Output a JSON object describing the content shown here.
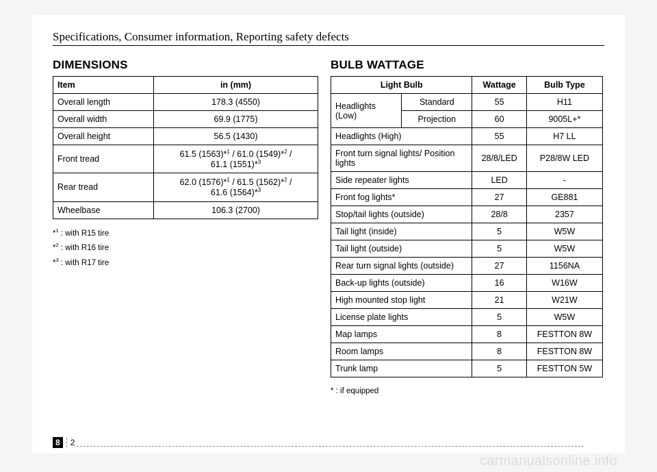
{
  "header": "Specifications, Consumer information, Reporting safety defects",
  "dimensions": {
    "title": "DIMENSIONS",
    "headers": {
      "c1": "Item",
      "c2": "in (mm)"
    },
    "rows": [
      {
        "item": "Overall length",
        "value": "178.3 (4550)"
      },
      {
        "item": "Overall width",
        "value": "69.9 (1775)"
      },
      {
        "item": "Overall height",
        "value": "56.5 (1430)"
      },
      {
        "item": "Front tread",
        "value_html": "61.5 (1563)*¹ / 61.0 (1549)*² / 61.1 (1551)*³"
      },
      {
        "item": "Rear tread",
        "value_html": "62.0 (1576)*¹ / 61.5 (1562)*² / 61.6 (1564)*³"
      },
      {
        "item": "Wheelbase",
        "value": "106.3 (2700)"
      }
    ],
    "footnotes": [
      {
        "mark": "1",
        "text": " : with R15 tire"
      },
      {
        "mark": "2",
        "text": " : with R16 tire"
      },
      {
        "mark": "3",
        "text": " : with R17 tire"
      }
    ]
  },
  "bulb": {
    "title": "BULB WATTAGE",
    "headers": {
      "c1": "Light Bulb",
      "c2": "Wattage",
      "c3": "Bulb Type"
    },
    "headlights_low_label": "Headlights (Low)",
    "headlights_low": [
      {
        "sub": "Standard",
        "wattage": "55",
        "type": "H11"
      },
      {
        "sub": "Projection",
        "wattage": "60",
        "type": "9005L+*"
      }
    ],
    "rows": [
      {
        "name": "Headlights (High)",
        "wattage": "55",
        "type": "H7 LL"
      },
      {
        "name": "Front turn signal lights/ Position lights",
        "wattage": "28/8/LED",
        "type": "P28/8W LED"
      },
      {
        "name": "Side repeater lights",
        "wattage": "LED",
        "type": "-"
      },
      {
        "name": "Front fog lights*",
        "wattage": "27",
        "type": "GE881"
      },
      {
        "name": "Stop/tail lights (outside)",
        "wattage": "28/8",
        "type": "2357"
      },
      {
        "name": "Tail light (inside)",
        "wattage": "5",
        "type": "W5W"
      },
      {
        "name": "Tail light (outside)",
        "wattage": "5",
        "type": "W5W"
      },
      {
        "name": "Rear turn signal lights (outside)",
        "wattage": "27",
        "type": "1156NA"
      },
      {
        "name": "Back-up lights (outside)",
        "wattage": "16",
        "type": "W16W"
      },
      {
        "name": "High mounted stop light",
        "wattage": "21",
        "type": "W21W"
      },
      {
        "name": "License plate lights",
        "wattage": "5",
        "type": "W5W"
      },
      {
        "name": "Map lamps",
        "wattage": "8",
        "type": "FESTTON 8W"
      },
      {
        "name": "Room lamps",
        "wattage": "8",
        "type": "FESTTON 8W"
      },
      {
        "name": "Trunk lamp",
        "wattage": "5",
        "type": "FESTTON 5W"
      }
    ],
    "footnote": "* : if equipped"
  },
  "page_number": {
    "section": "8",
    "page": "2"
  },
  "watermark": "carmanualsonline.info"
}
